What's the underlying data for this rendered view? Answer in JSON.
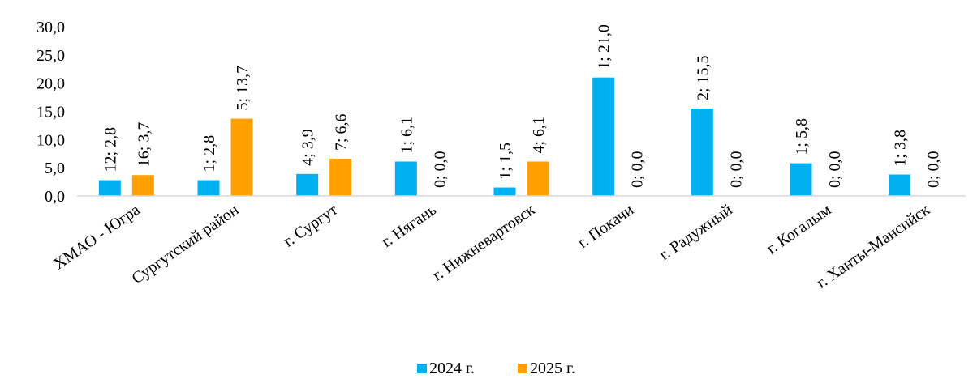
{
  "chart_data": {
    "type": "bar",
    "categories": [
      "ХМАО - Югра",
      "Сургутский район",
      "г. Сургут",
      "г. Нягань",
      "г. Нижневартовск",
      "г. Покачи",
      "г. Радужный",
      "г. Когалым",
      "г. Ханты-Мансийск"
    ],
    "series": [
      {
        "name": "2024 г.",
        "color": "#00b0f0",
        "values": [
          2.8,
          2.8,
          3.9,
          6.1,
          1.5,
          21.0,
          15.5,
          5.8,
          3.8
        ],
        "labels": [
          "12; 2,8",
          "1; 2,8",
          "4; 3,9",
          "1; 6,1",
          "1; 1,5",
          "1; 21,0",
          "2; 15,5",
          "1; 5,8",
          "1; 3,8"
        ]
      },
      {
        "name": "2025 г.",
        "color": "#ffa000",
        "values": [
          3.7,
          13.7,
          6.6,
          0.0,
          6.1,
          0.0,
          0.0,
          0.0,
          0.0
        ],
        "labels": [
          "16; 3,7",
          "5; 13,7",
          "7; 6,6",
          "0; 0,0",
          "4; 6,1",
          "0; 0,0",
          "0; 0,0",
          "0; 0,0",
          "0; 0,0"
        ]
      }
    ],
    "yticks": [
      "0,0",
      "5,0",
      "10,0",
      "15,0",
      "20,0",
      "25,0",
      "30,0"
    ],
    "ylim": [
      0,
      30
    ],
    "grid": false,
    "legend": "bottom",
    "title": "",
    "xlabel": "",
    "ylabel": ""
  }
}
